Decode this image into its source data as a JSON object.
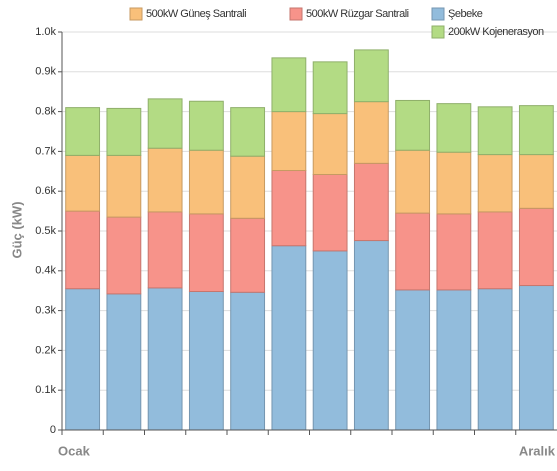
{
  "chart_data": {
    "type": "stacked_bar",
    "y_axis_label": "Güç (kW)",
    "categories": [
      "Ocak",
      null,
      null,
      null,
      null,
      null,
      null,
      null,
      null,
      null,
      null,
      "Aralık"
    ],
    "series": [
      {
        "name": "Şebeke",
        "color": "#92bcdc",
        "values": [
          355,
          342,
          357,
          348,
          346,
          463,
          450,
          476,
          352,
          352,
          355,
          363
        ]
      },
      {
        "name": "500kW Rüzgar Santrali",
        "color": "#f7938a",
        "values": [
          195,
          193,
          191,
          195,
          186,
          189,
          192,
          194,
          193,
          191,
          193,
          194
        ]
      },
      {
        "name": "500kW Güneş Santrali",
        "color": "#f9c07a",
        "values": [
          140,
          155,
          160,
          160,
          156,
          148,
          153,
          155,
          158,
          155,
          144,
          135
        ]
      },
      {
        "name": "200kW Kojenerasyon",
        "color": "#b3db84",
        "values": [
          120,
          118,
          124,
          123,
          122,
          135,
          130,
          130,
          125,
          122,
          120,
          123
        ]
      }
    ],
    "ylim": [
      0,
      1000
    ],
    "yticks": [
      0,
      {
        "value": 100,
        "label": "0.1k"
      },
      {
        "value": 200,
        "label": "0.2k"
      },
      {
        "value": 300,
        "label": "0.3k"
      },
      {
        "value": 400,
        "label": "0.4k"
      },
      {
        "value": 500,
        "label": "0.5k"
      },
      {
        "value": 600,
        "label": "0.6k"
      },
      {
        "value": 700,
        "label": "0.7k"
      },
      {
        "value": 800,
        "label": "0.8k"
      },
      {
        "value": 900,
        "label": "0.9k"
      },
      {
        "value": 1000,
        "label": "1.0k"
      }
    ],
    "grid": true
  }
}
